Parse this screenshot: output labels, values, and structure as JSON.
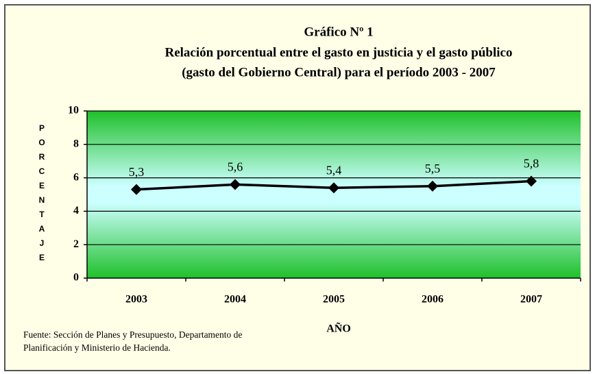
{
  "chart_data": {
    "type": "line",
    "title": "Gráfico Nº 1",
    "subtitle": [
      "Relación porcentual entre el gasto en justicia y el gasto público",
      "(gasto del Gobierno Central) para el período  2003 - 2007"
    ],
    "categories": [
      "2003",
      "2004",
      "2005",
      "2006",
      "2007"
    ],
    "values": [
      5.3,
      5.6,
      5.4,
      5.5,
      5.8
    ],
    "value_labels": [
      "5,3",
      "5,6",
      "5,4",
      "5,5",
      "5,8"
    ],
    "color": "#000000",
    "ylim": [
      0,
      10
    ],
    "yticks": [
      0,
      2,
      4,
      6,
      8,
      10
    ],
    "grid": true,
    "ylabel": "PORCENTAJE",
    "xlabel": "AÑO",
    "source": "Fuente: Sección de Planes y Presupuesto, Departamento de Planificación y Ministerio de Hacienda."
  }
}
